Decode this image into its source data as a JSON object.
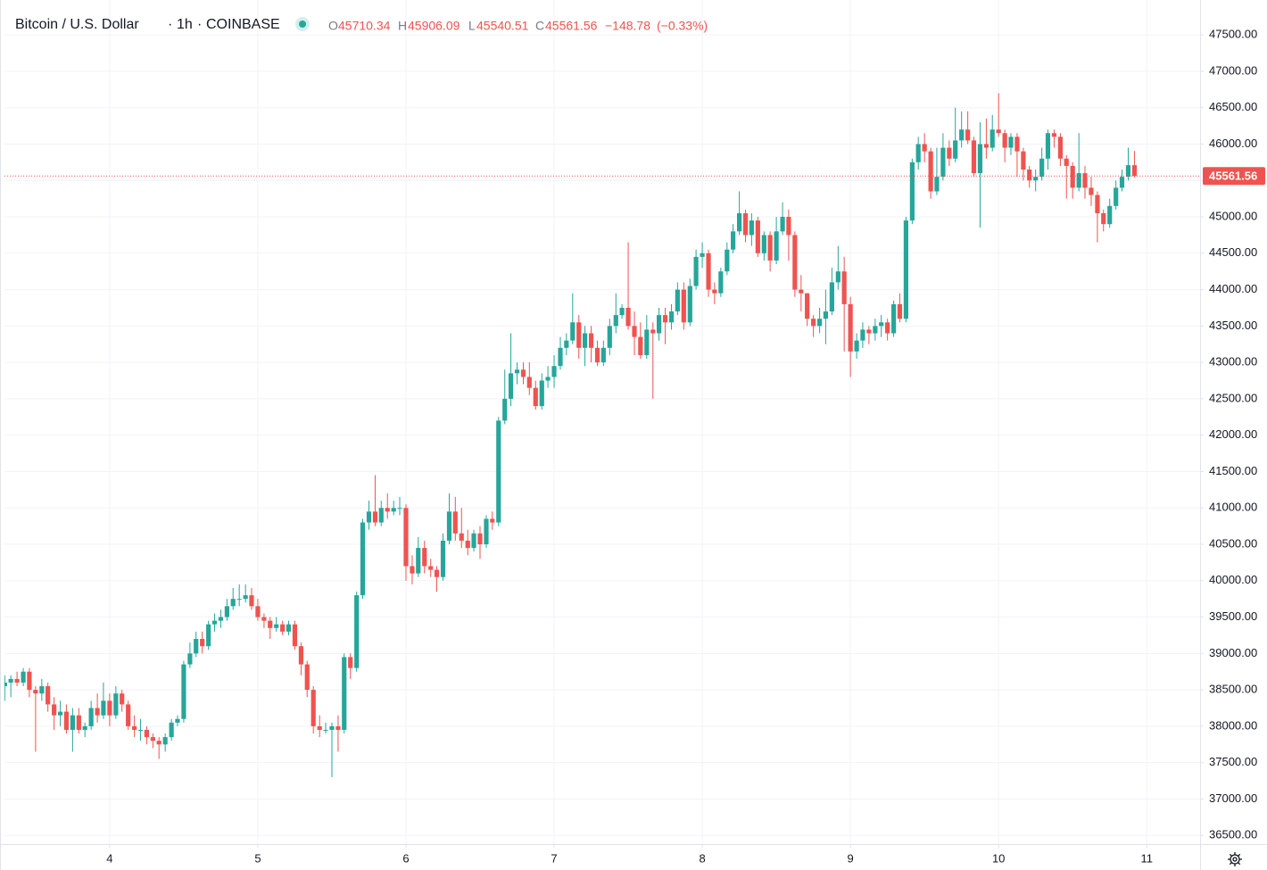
{
  "chart_data": {
    "type": "candlestick",
    "title": "Bitcoin / U.S. Dollar",
    "interval": "1h",
    "exchange": "COINBASE",
    "legend": {
      "open_label": "O",
      "open": "45710.34",
      "high_label": "H",
      "high": "45906.09",
      "low_label": "L",
      "low": "45540.51",
      "close_label": "C",
      "close": "45561.56",
      "change": "−148.78",
      "change_pct": "(−0.33%)"
    },
    "last_price_label": "45561.56",
    "up_color": "#26a69a",
    "down_color": "#ef5350",
    "grid": true,
    "xlim": [
      3.29,
      11.36
    ],
    "xticks": [
      4,
      5,
      6,
      7,
      8,
      9,
      10,
      11
    ],
    "ylim": [
      36380,
      47980
    ],
    "yticks": [
      {
        "value": 36500,
        "label": "36500.00"
      },
      {
        "value": 37000,
        "label": "37000.00"
      },
      {
        "value": 37500,
        "label": "37500.00"
      },
      {
        "value": 38000,
        "label": "38000.00"
      },
      {
        "value": 38500,
        "label": "38500.00"
      },
      {
        "value": 39000,
        "label": "39000.00"
      },
      {
        "value": 39500,
        "label": "39500.00"
      },
      {
        "value": 40000,
        "label": "40000.00"
      },
      {
        "value": 40500,
        "label": "40500.00"
      },
      {
        "value": 41000,
        "label": "41000.00"
      },
      {
        "value": 41500,
        "label": "41500.00"
      },
      {
        "value": 42000,
        "label": "42000.00"
      },
      {
        "value": 42500,
        "label": "42500.00"
      },
      {
        "value": 43000,
        "label": "43000.00"
      },
      {
        "value": 43500,
        "label": "43500.00"
      },
      {
        "value": 44000,
        "label": "44000.00"
      },
      {
        "value": 44500,
        "label": "44500.00"
      },
      {
        "value": 45000,
        "label": "45000.00"
      },
      {
        "value": 45500,
        "label": "45500.00"
      },
      {
        "value": 46000,
        "label": "46000.00"
      },
      {
        "value": 46500,
        "label": "46500.00"
      },
      {
        "value": 47000,
        "label": "47000.00"
      },
      {
        "value": 47500,
        "label": "47500.00"
      }
    ],
    "x": [
      3.292,
      3.333,
      3.375,
      3.417,
      3.458,
      3.5,
      3.542,
      3.583,
      3.625,
      3.667,
      3.708,
      3.75,
      3.792,
      3.833,
      3.875,
      3.917,
      3.958,
      4,
      4.042,
      4.083,
      4.125,
      4.167,
      4.208,
      4.25,
      4.292,
      4.333,
      4.375,
      4.417,
      4.458,
      4.5,
      4.542,
      4.583,
      4.625,
      4.667,
      4.708,
      4.75,
      4.792,
      4.833,
      4.875,
      4.917,
      4.958,
      5,
      5.042,
      5.083,
      5.125,
      5.167,
      5.208,
      5.25,
      5.292,
      5.333,
      5.375,
      5.417,
      5.458,
      5.5,
      5.542,
      5.583,
      5.625,
      5.667,
      5.708,
      5.75,
      5.792,
      5.833,
      5.875,
      5.917,
      5.958,
      6,
      6.042,
      6.083,
      6.125,
      6.167,
      6.208,
      6.25,
      6.292,
      6.333,
      6.375,
      6.417,
      6.458,
      6.5,
      6.542,
      6.583,
      6.625,
      6.667,
      6.708,
      6.75,
      6.792,
      6.833,
      6.875,
      6.917,
      6.958,
      7,
      7.042,
      7.083,
      7.125,
      7.167,
      7.208,
      7.25,
      7.292,
      7.333,
      7.375,
      7.417,
      7.458,
      7.5,
      7.542,
      7.583,
      7.625,
      7.667,
      7.708,
      7.75,
      7.792,
      7.833,
      7.875,
      7.917,
      7.958,
      8,
      8.042,
      8.083,
      8.125,
      8.167,
      8.208,
      8.25,
      8.292,
      8.333,
      8.375,
      8.417,
      8.458,
      8.5,
      8.542,
      8.583,
      8.625,
      8.667,
      8.708,
      8.75,
      8.792,
      8.833,
      8.875,
      8.917,
      8.958,
      9,
      9.042,
      9.083,
      9.125,
      9.167,
      9.208,
      9.25,
      9.292,
      9.333,
      9.375,
      9.417,
      9.458,
      9.5,
      9.542,
      9.583,
      9.625,
      9.667,
      9.708,
      9.75,
      9.792,
      9.833,
      9.875,
      9.917,
      9.958,
      10,
      10.042,
      10.083,
      10.125,
      10.167,
      10.208,
      10.25,
      10.292,
      10.333,
      10.375,
      10.417,
      10.458,
      10.5,
      10.542,
      10.583,
      10.625,
      10.667,
      10.708,
      10.75,
      10.792,
      10.833,
      10.875,
      10.917
    ],
    "open": [
      38550,
      38600,
      38650,
      38600,
      38750,
      38500,
      38450,
      38550,
      38300,
      38150,
      38200,
      37950,
      38150,
      37950,
      38000,
      38250,
      38150,
      38350,
      38150,
      38450,
      38300,
      38000,
      37950,
      37950,
      37850,
      37800,
      37750,
      37850,
      38050,
      38100,
      38850,
      39000,
      39200,
      39100,
      39400,
      39450,
      39500,
      39650,
      39750,
      39750,
      39800,
      39650,
      39500,
      39450,
      39350,
      39400,
      39300,
      39400,
      39100,
      38850,
      38500,
      38000,
      37950,
      37950,
      38000,
      37950,
      38950,
      38800,
      39800,
      40800,
      40950,
      40800,
      41000,
      40950,
      41000,
      41000,
      40200,
      40100,
      40450,
      40200,
      40150,
      40050,
      40550,
      40950,
      40650,
      40550,
      40450,
      40650,
      40500,
      40850,
      40800,
      42200,
      42500,
      42850,
      42900,
      42800,
      42650,
      42400,
      42750,
      42800,
      42950,
      43200,
      43300,
      43550,
      43200,
      43400,
      43200,
      43000,
      43200,
      43500,
      43650,
      43750,
      43500,
      43350,
      43100,
      43450,
      43400,
      43650,
      43550,
      43700,
      44000,
      43550,
      44050,
      44450,
      44500,
      44000,
      43950,
      44250,
      44550,
      44800,
      45050,
      44750,
      44950,
      44500,
      44750,
      44400,
      44800,
      45000,
      44750,
      44000,
      43950,
      43600,
      43500,
      43600,
      43700,
      44100,
      44250,
      43800,
      43150,
      43300,
      43450,
      43400,
      43500,
      43550,
      43400,
      43800,
      43600,
      44950,
      45750,
      46000,
      45900,
      45350,
      45550,
      45950,
      45800,
      46050,
      46200,
      46050,
      45600,
      46000,
      45950,
      46200,
      46150,
      45950,
      46100,
      45900,
      45650,
      45500,
      45550,
      45800,
      46150,
      46100,
      45800,
      45700,
      45400,
      45600,
      45400,
      45300,
      45050,
      44900,
      45150,
      45400,
      45550,
      45710.34
    ],
    "high": [
      38700,
      38700,
      38750,
      38800,
      38800,
      38550,
      38650,
      38600,
      38400,
      38350,
      38300,
      38250,
      38250,
      38050,
      38350,
      38450,
      38600,
      38450,
      38550,
      38500,
      38350,
      38150,
      38100,
      38000,
      37900,
      37850,
      37900,
      38100,
      38150,
      38900,
      39150,
      39300,
      39300,
      39450,
      39550,
      39600,
      39750,
      39900,
      39950,
      39950,
      39900,
      39750,
      39550,
      39500,
      39500,
      39450,
      39450,
      39450,
      39150,
      38900,
      38550,
      38150,
      38050,
      38050,
      38150,
      39000,
      39000,
      39850,
      40850,
      41100,
      41450,
      41100,
      41200,
      41100,
      41150,
      41050,
      40350,
      40600,
      40550,
      40300,
      40200,
      40650,
      41200,
      41150,
      41000,
      40700,
      40700,
      40750,
      40900,
      40950,
      42250,
      42900,
      43400,
      43000,
      43000,
      43000,
      42750,
      42850,
      42950,
      43100,
      43350,
      43400,
      43950,
      43650,
      43500,
      43500,
      43300,
      43300,
      43600,
      43950,
      43800,
      44650,
      43700,
      43550,
      43650,
      43550,
      43750,
      43750,
      43800,
      44100,
      44100,
      44150,
      44550,
      44650,
      44550,
      44100,
      44300,
      44650,
      44900,
      45350,
      45100,
      45050,
      45000,
      44800,
      44800,
      45000,
      45200,
      45100,
      44800,
      44200,
      43950,
      43650,
      43750,
      44000,
      44300,
      44600,
      44450,
      43900,
      43400,
      43550,
      43500,
      43600,
      43650,
      43600,
      43850,
      43950,
      45000,
      45800,
      46100,
      46150,
      45950,
      45950,
      46150,
      46050,
      46500,
      46450,
      46450,
      46100,
      46300,
      46350,
      46400,
      46700,
      46200,
      46150,
      46150,
      45950,
      45700,
      45650,
      45950,
      46200,
      46200,
      46150,
      45850,
      45750,
      46150,
      45700,
      45550,
      45350,
      45100,
      45250,
      45500,
      45650,
      45950,
      45906.09
    ],
    "low": [
      38350,
      38400,
      38550,
      38550,
      38400,
      37650,
      38350,
      38200,
      37950,
      38000,
      37900,
      37650,
      37900,
      37850,
      37950,
      38050,
      38100,
      38000,
      38100,
      38200,
      37950,
      37850,
      37800,
      37750,
      37700,
      37550,
      37650,
      37800,
      38000,
      38050,
      38800,
      38950,
      39000,
      39050,
      39300,
      39350,
      39450,
      39600,
      39650,
      39700,
      39600,
      39450,
      39350,
      39200,
      39300,
      39250,
      39250,
      39050,
      38700,
      38400,
      37900,
      37850,
      37900,
      37300,
      37650,
      37900,
      38650,
      38750,
      39750,
      40700,
      40750,
      40750,
      40850,
      40900,
      40900,
      40000,
      39950,
      40050,
      40100,
      40050,
      39850,
      40000,
      40500,
      40550,
      40450,
      40350,
      40400,
      40300,
      40450,
      40700,
      40750,
      42150,
      42400,
      42700,
      42700,
      42550,
      42350,
      42350,
      42650,
      42650,
      42900,
      43100,
      43250,
      43050,
      42950,
      43000,
      42950,
      42950,
      43100,
      43400,
      43600,
      43450,
      43100,
      43050,
      43050,
      42500,
      43300,
      43250,
      43450,
      43650,
      43450,
      43500,
      44000,
      44300,
      43900,
      43800,
      43900,
      44200,
      44500,
      44750,
      44650,
      44600,
      44450,
      44400,
      44250,
      44350,
      44750,
      44400,
      43900,
      43700,
      43500,
      43350,
      43400,
      43250,
      43650,
      44000,
      43150,
      42800,
      43050,
      43200,
      43250,
      43300,
      43350,
      43300,
      43350,
      43550,
      43550,
      44900,
      45650,
      45750,
      45250,
      45300,
      45500,
      45700,
      45750,
      45950,
      46000,
      45550,
      44850,
      45800,
      45900,
      46100,
      45750,
      45850,
      45550,
      45500,
      45400,
      45350,
      45500,
      45650,
      45950,
      45700,
      45250,
      45250,
      45350,
      45250,
      45150,
      44650,
      44800,
      44850,
      45100,
      45350,
      45500,
      45540.51
    ],
    "close": [
      38600,
      38650,
      38600,
      38750,
      38500,
      38450,
      38550,
      38300,
      38150,
      38200,
      37950,
      38150,
      37950,
      38000,
      38250,
      38150,
      38350,
      38150,
      38450,
      38300,
      38000,
      37950,
      37950,
      37850,
      37800,
      37750,
      37850,
      38050,
      38100,
      38850,
      39000,
      39200,
      39100,
      39400,
      39450,
      39500,
      39650,
      39750,
      39750,
      39800,
      39650,
      39500,
      39450,
      39350,
      39400,
      39300,
      39400,
      39100,
      38850,
      38500,
      38000,
      37950,
      37950,
      38000,
      37950,
      38950,
      38800,
      39800,
      40800,
      40950,
      40800,
      41000,
      40950,
      41000,
      41000,
      40200,
      40100,
      40450,
      40200,
      40150,
      40050,
      40550,
      40950,
      40650,
      40550,
      40450,
      40650,
      40500,
      40850,
      40800,
      42200,
      42500,
      42850,
      42900,
      42800,
      42650,
      42400,
      42750,
      42800,
      42950,
      43200,
      43300,
      43550,
      43200,
      43400,
      43200,
      43000,
      43200,
      43500,
      43650,
      43750,
      43500,
      43350,
      43100,
      43450,
      43400,
      43650,
      43550,
      43700,
      44000,
      43550,
      44050,
      44450,
      44500,
      44000,
      43950,
      44250,
      44550,
      44800,
      45050,
      44750,
      44950,
      44500,
      44750,
      44400,
      44800,
      45000,
      44750,
      44000,
      43950,
      43600,
      43500,
      43600,
      43700,
      44100,
      44250,
      43800,
      43150,
      43300,
      43450,
      43400,
      43500,
      43550,
      43400,
      43800,
      43600,
      44950,
      45750,
      46000,
      45900,
      45350,
      45550,
      45950,
      45800,
      46050,
      46200,
      46050,
      45600,
      46000,
      45950,
      46200,
      46150,
      45950,
      46100,
      45900,
      45650,
      45500,
      45550,
      45800,
      46150,
      46100,
      45800,
      45700,
      45400,
      45600,
      45400,
      45300,
      45050,
      44900,
      45150,
      45400,
      45550,
      45710.34,
      45561.56
    ]
  }
}
